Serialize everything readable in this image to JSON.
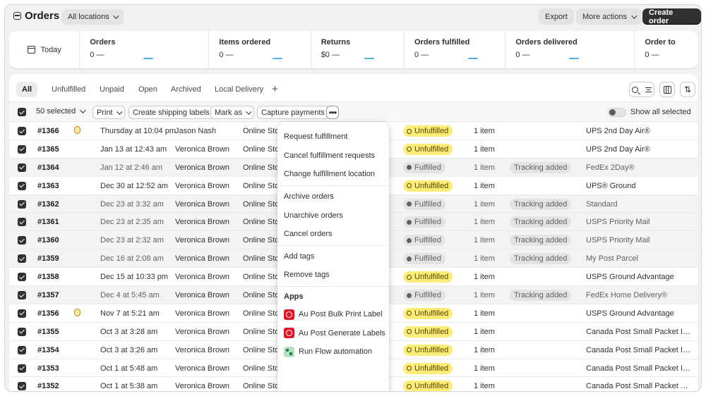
{
  "header": {
    "title": "Orders",
    "location_filter": "All locations",
    "export_label": "Export",
    "more_actions_label": "More actions",
    "create_order_label": "Create order"
  },
  "metrics": {
    "period": "Today",
    "items": [
      {
        "label": "Orders",
        "value": "0 —"
      },
      {
        "label": "Items ordered",
        "value": "0 —"
      },
      {
        "label": "Returns",
        "value": "$0 —"
      },
      {
        "label": "Orders fulfilled",
        "value": "0 —"
      },
      {
        "label": "Orders delivered",
        "value": "0 —"
      },
      {
        "label": "Order to",
        "value": "0 —"
      }
    ]
  },
  "tabs": [
    "All",
    "Unfulfilled",
    "Unpaid",
    "Open",
    "Archived",
    "Local Delivery"
  ],
  "tab_add": "+",
  "bulk": {
    "selected": "50 selected",
    "print": "Print",
    "create_shipping_labels": "Create shipping labels",
    "mark_as": "Mark as",
    "capture_payments": "Capture payments",
    "more": "•••",
    "show_all_selected": "Show all selected"
  },
  "orders": [
    {
      "id": "#1366",
      "risk": true,
      "date": "Thursday at 10:04 pm",
      "customer": "Jason Nash",
      "channel": "Online Store",
      "status": "Unfulfilled",
      "items": "1 item",
      "tracking": "",
      "shipping": "UPS 2nd Day Air®"
    },
    {
      "id": "#1365",
      "risk": false,
      "date": "Jan 13 at 12:43 am",
      "customer": "Veronica Brown",
      "channel": "Online Store",
      "status": "Unfulfilled",
      "items": "1 item",
      "tracking": "",
      "shipping": "UPS 2nd Day Air®"
    },
    {
      "id": "#1364",
      "risk": false,
      "date": "Jan 12 at 2:46 am",
      "customer": "Veronica Brown",
      "channel": "Online Store",
      "status": "Fulfilled",
      "items": "1 item",
      "tracking": "Tracking added",
      "shipping": "FedEx 2Day®"
    },
    {
      "id": "#1363",
      "risk": false,
      "date": "Dec 30 at 12:52 am",
      "customer": "Veronica Brown",
      "channel": "Online Store",
      "status": "Unfulfilled",
      "items": "1 item",
      "tracking": "",
      "shipping": "UPS® Ground"
    },
    {
      "id": "#1362",
      "risk": false,
      "date": "Dec 23 at 3:32 am",
      "customer": "Veronica Brown",
      "channel": "Online Store",
      "status": "Fulfilled",
      "items": "1 item",
      "tracking": "Tracking added",
      "shipping": "Standard"
    },
    {
      "id": "#1361",
      "risk": false,
      "date": "Dec 23 at 2:35 am",
      "customer": "Veronica Brown",
      "channel": "Online Store",
      "status": "Fulfilled",
      "items": "1 item",
      "tracking": "Tracking added",
      "shipping": "USPS Priority Mail"
    },
    {
      "id": "#1360",
      "risk": false,
      "date": "Dec 23 at 2:32 am",
      "customer": "Veronica Brown",
      "channel": "Online Store",
      "status": "Fulfilled",
      "items": "1 item",
      "tracking": "Tracking added",
      "shipping": "USPS Priority Mail"
    },
    {
      "id": "#1359",
      "risk": false,
      "date": "Dec 16 at 2:08 am",
      "customer": "Veronica Brown",
      "channel": "Online Store",
      "status": "Fulfilled",
      "items": "1 item",
      "tracking": "Tracking added",
      "shipping": "My Post Parcel"
    },
    {
      "id": "#1358",
      "risk": false,
      "date": "Dec 15 at 10:33 pm",
      "customer": "Veronica Brown",
      "channel": "Online Store",
      "status": "Unfulfilled",
      "items": "1 item",
      "tracking": "",
      "shipping": "USPS Ground Advantage"
    },
    {
      "id": "#1357",
      "risk": false,
      "date": "Dec 4 at 5:45 am",
      "customer": "Veronica Brown",
      "channel": "Online Store",
      "status": "Fulfilled",
      "items": "1 item",
      "tracking": "Tracking added",
      "shipping": "FedEx Home Delivery®"
    },
    {
      "id": "#1356",
      "risk": true,
      "date": "Nov 7 at 5:21 am",
      "customer": "Veronica Brown",
      "channel": "Online Store",
      "status": "Unfulfilled",
      "items": "1 item",
      "tracking": "",
      "shipping": "USPS Ground Advantage"
    },
    {
      "id": "#1355",
      "risk": false,
      "date": "Oct 3 at 3:28 am",
      "customer": "Veronica Brown",
      "channel": "Online Store",
      "status": "Unfulfilled",
      "items": "1 item",
      "tracking": "",
      "shipping": "Canada Post Small Packet Inte..."
    },
    {
      "id": "#1354",
      "risk": false,
      "date": "Oct 3 at 3:26 am",
      "customer": "Veronica Brown",
      "channel": "Online Store",
      "status": "Unfulfilled",
      "items": "1 item",
      "tracking": "",
      "shipping": "Canada Post Small Packet Inte..."
    },
    {
      "id": "#1353",
      "risk": false,
      "date": "Oct 1 at 5:48 am",
      "customer": "Veronica Brown",
      "channel": "Online Store",
      "status": "Unfulfilled",
      "items": "1 item",
      "tracking": "",
      "shipping": "Canada Post Small Packet Inte..."
    },
    {
      "id": "#1352",
      "risk": false,
      "date": "Oct 1 at 5:38 am",
      "customer": "Veronica Brown",
      "channel": "Online Store",
      "status": "Unfulfilled",
      "items": "1 item",
      "tracking": "",
      "shipping": "Canada Post Small Packet USA ..."
    }
  ],
  "menu": {
    "groups": [
      [
        "Request fulfillment",
        "Cancel fulfillment requests",
        "Change fulfillment location"
      ],
      [
        "Archive orders",
        "Unarchive orders",
        "Cancel orders"
      ],
      [
        "Add tags",
        "Remove tags"
      ]
    ],
    "apps_heading": "Apps",
    "apps": [
      {
        "label": "Au Post Bulk Print Label",
        "icon": "aupost"
      },
      {
        "label": "Au Post Generate Labels",
        "icon": "aupost"
      },
      {
        "label": "Run Flow automation",
        "icon": "flow"
      }
    ]
  },
  "colors": {
    "unfulfilled_bg": "#ffeb78",
    "fulfilled_bg": "#e3e3e3",
    "primary_button": "#303030"
  }
}
